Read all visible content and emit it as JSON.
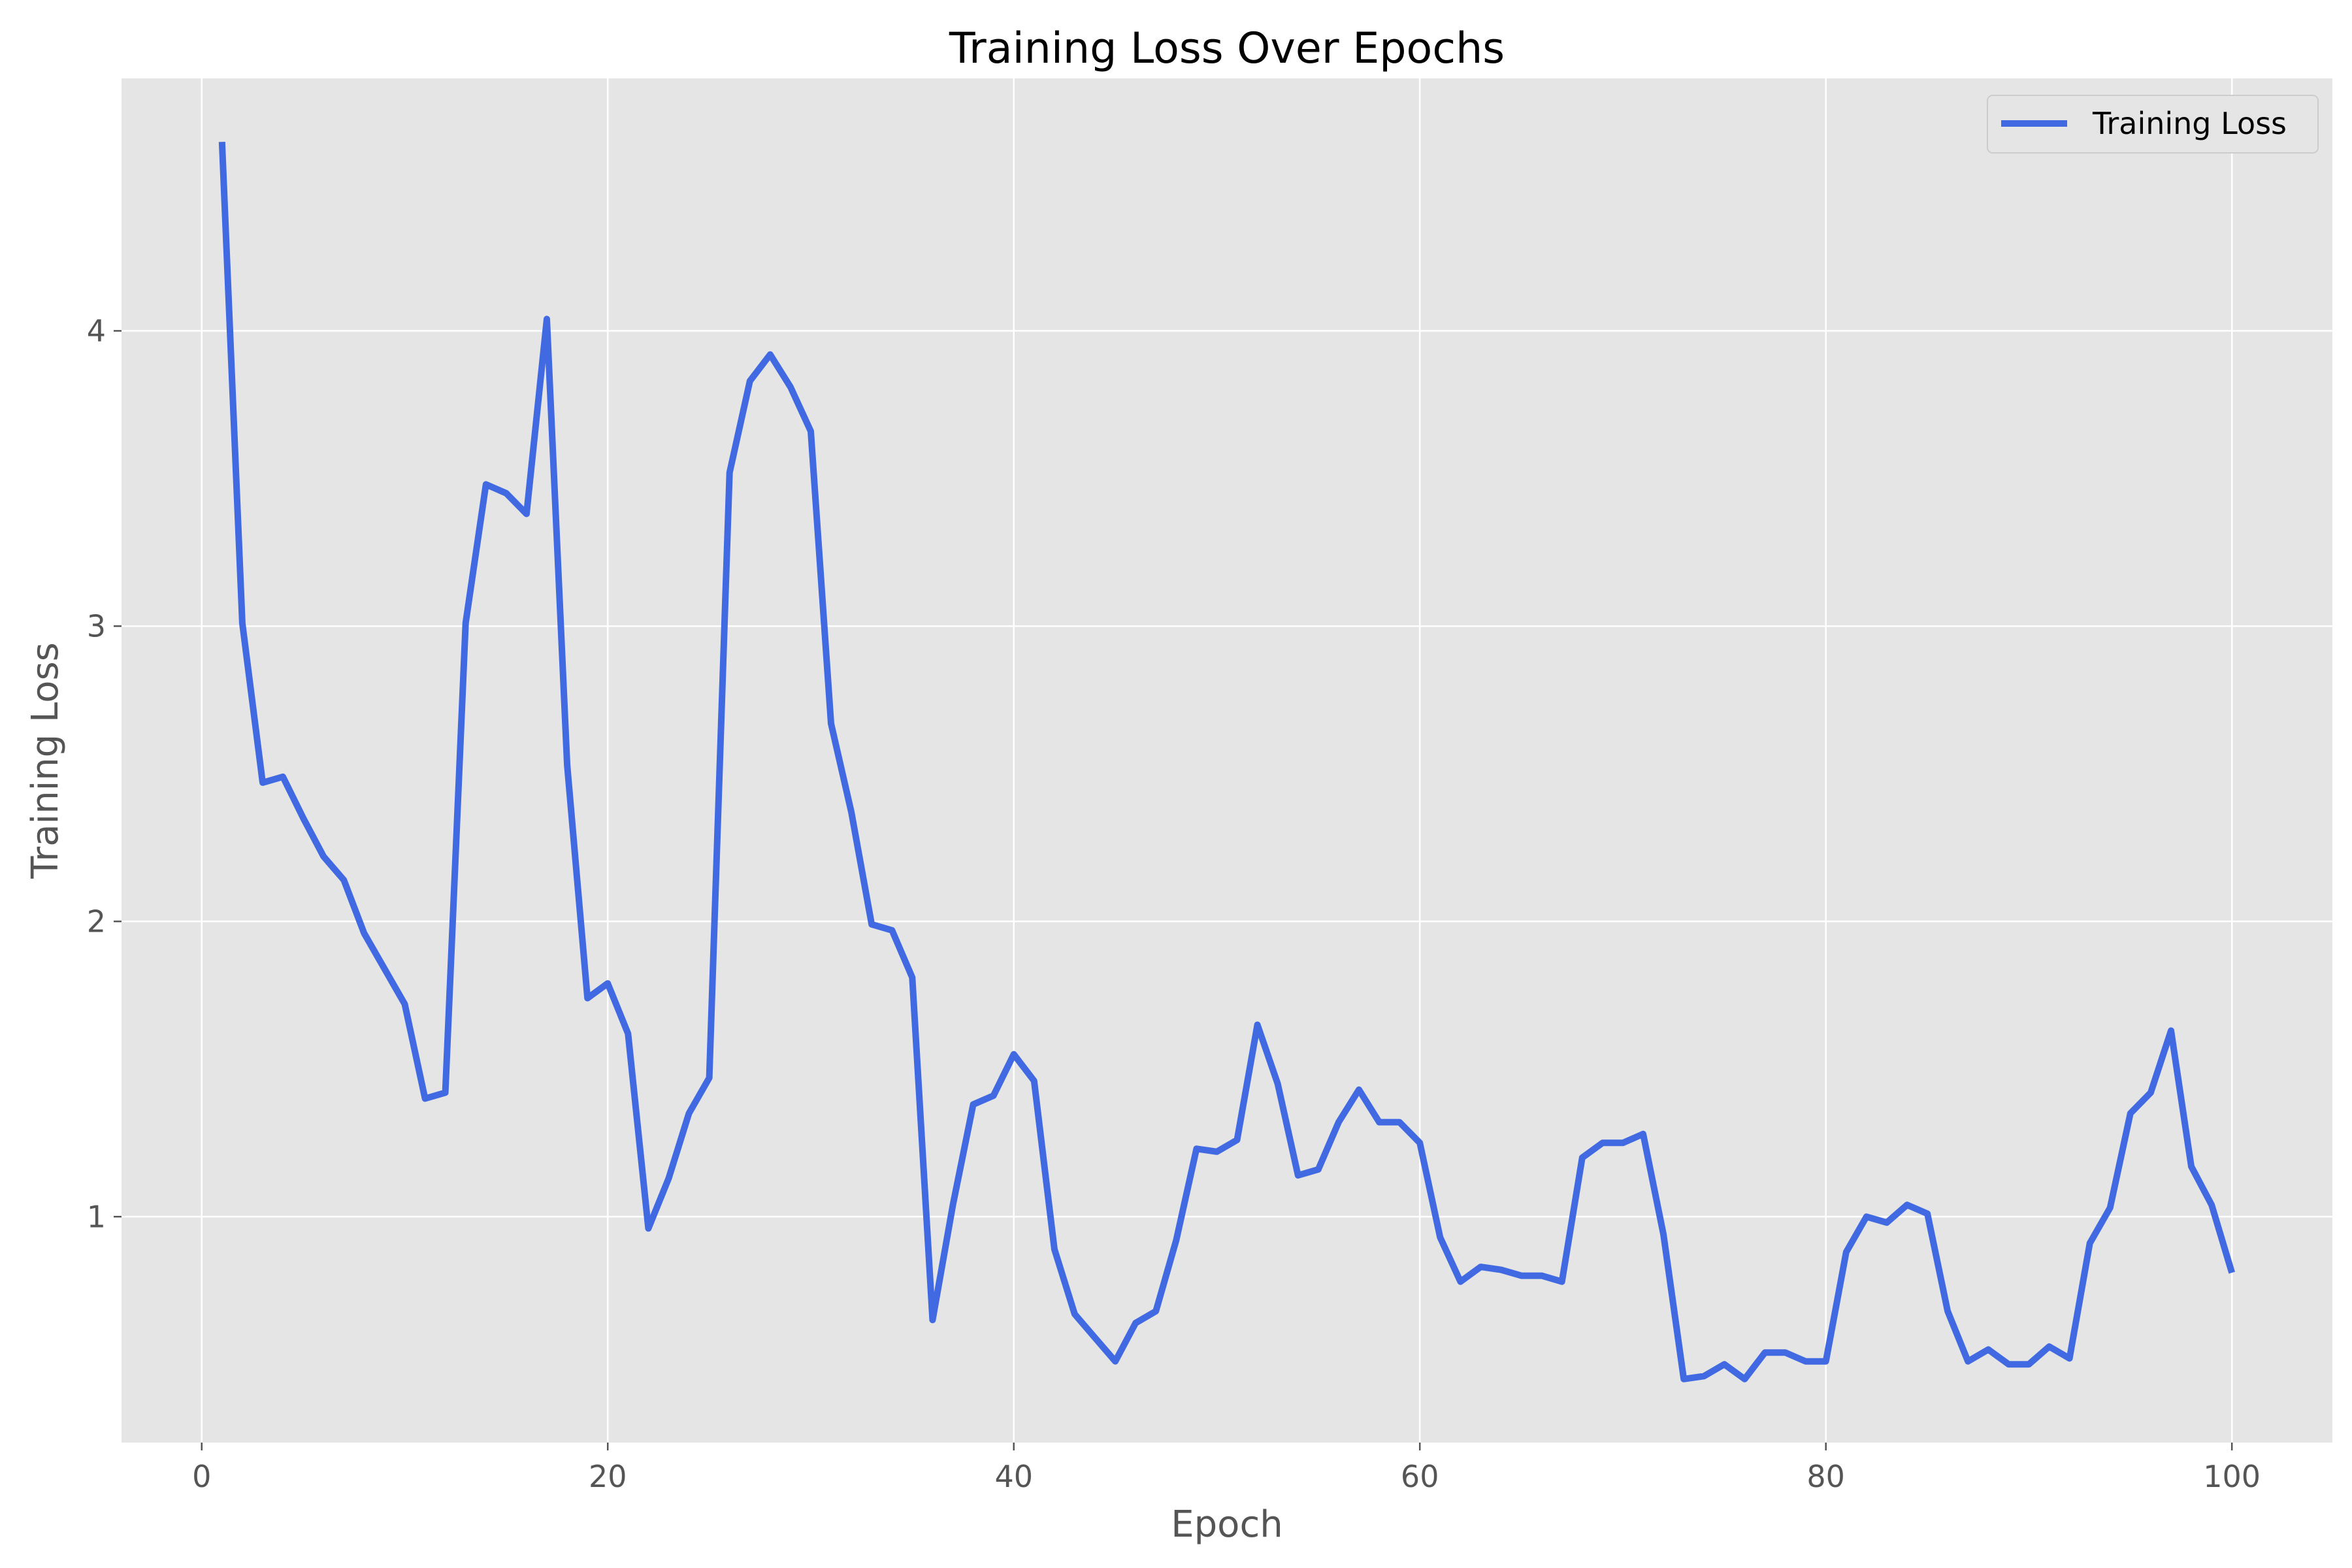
{
  "chart_data": {
    "type": "line",
    "title": "Training Loss Over Epochs",
    "xlabel": "Epoch",
    "ylabel": "Training Loss",
    "xlim": [
      -3.95,
      104.95
    ],
    "ylim": [
      0.235,
      4.855
    ],
    "xticks": [
      0,
      20,
      40,
      60,
      80,
      100
    ],
    "yticks": [
      1,
      2,
      3,
      4
    ],
    "grid": true,
    "legend_position": "top-right",
    "colors": {
      "line": "#4169e1",
      "plot_background": "#e5e5e5",
      "grid": "#ffffff",
      "tick_text": "#555555"
    },
    "series": [
      {
        "name": "Training Loss",
        "x": [
          1,
          2,
          3,
          4,
          5,
          6,
          7,
          8,
          9,
          10,
          11,
          12,
          13,
          14,
          15,
          16,
          17,
          18,
          19,
          20,
          21,
          22,
          23,
          24,
          25,
          26,
          27,
          28,
          29,
          30,
          31,
          32,
          33,
          34,
          35,
          36,
          37,
          38,
          39,
          40,
          41,
          42,
          43,
          44,
          45,
          46,
          47,
          48,
          49,
          50,
          51,
          52,
          53,
          54,
          55,
          56,
          57,
          58,
          59,
          60,
          61,
          62,
          63,
          64,
          65,
          66,
          67,
          68,
          69,
          70,
          71,
          72,
          73,
          74,
          75,
          76,
          77,
          78,
          79,
          80,
          81,
          82,
          83,
          84,
          85,
          86,
          87,
          88,
          89,
          90,
          91,
          92,
          93,
          94,
          95,
          96,
          97,
          98,
          99,
          100
        ],
        "values": [
          4.64,
          3.01,
          2.47,
          2.49,
          2.35,
          2.22,
          2.14,
          1.96,
          1.84,
          1.72,
          1.4,
          1.42,
          3.01,
          3.48,
          3.45,
          3.38,
          4.04,
          2.53,
          1.74,
          1.79,
          1.62,
          0.96,
          1.13,
          1.35,
          1.47,
          3.52,
          3.83,
          3.92,
          3.81,
          3.66,
          2.67,
          2.37,
          1.99,
          1.97,
          1.81,
          0.65,
          1.04,
          1.38,
          1.41,
          1.55,
          1.46,
          0.89,
          0.67,
          0.59,
          0.51,
          0.64,
          0.68,
          0.92,
          1.23,
          1.22,
          1.26,
          1.65,
          1.45,
          1.14,
          1.16,
          1.32,
          1.43,
          1.32,
          1.32,
          1.25,
          0.93,
          0.78,
          0.83,
          0.82,
          0.8,
          0.8,
          0.78,
          1.2,
          1.25,
          1.25,
          1.28,
          0.94,
          0.45,
          0.46,
          0.5,
          0.45,
          0.54,
          0.54,
          0.51,
          0.51,
          0.88,
          1.0,
          0.98,
          1.04,
          1.01,
          0.68,
          0.51,
          0.55,
          0.5,
          0.5,
          0.56,
          0.52,
          0.91,
          1.03,
          1.35,
          1.42,
          1.63,
          1.17,
          1.04,
          0.81
        ]
      }
    ]
  }
}
